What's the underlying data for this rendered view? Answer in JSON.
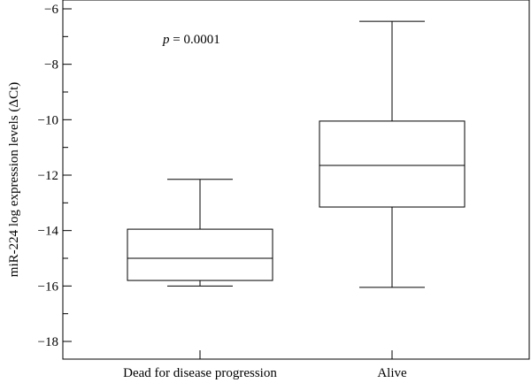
{
  "chart_data": {
    "type": "box",
    "ylabel": "miR-224 log expression levels (ΔCt)",
    "ylim": [
      -18.5,
      -5.8
    ],
    "yticks": [
      -18,
      -16,
      -14,
      -12,
      -10,
      -8,
      -6
    ],
    "ytick_labels": [
      "−18",
      "−16",
      "−14",
      "−12",
      "−10",
      "−8",
      "−6"
    ],
    "categories": [
      "Dead for disease progression",
      "Alive"
    ],
    "boxes": [
      {
        "category": "Dead for disease progression",
        "whisker_low": -16.0,
        "q1": -15.8,
        "median": -15.0,
        "q3": -13.95,
        "whisker_high": -12.15
      },
      {
        "category": "Alive",
        "whisker_low": -16.05,
        "q1": -13.15,
        "median": -11.65,
        "q3": -10.05,
        "whisker_high": -6.45
      }
    ],
    "annotation": {
      "prefix": "p",
      "text": " = 0.0001"
    },
    "grid": false,
    "legend": "none"
  }
}
